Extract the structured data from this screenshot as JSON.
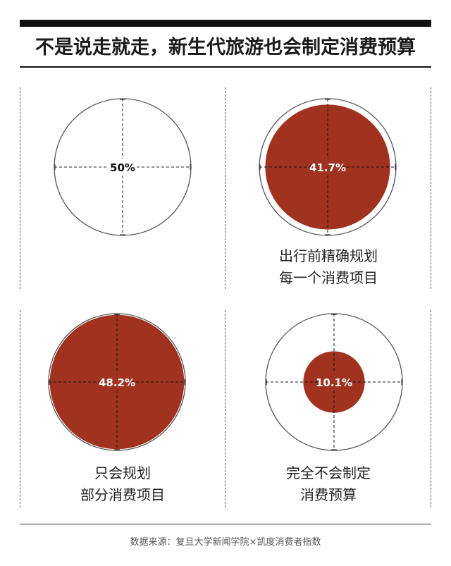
{
  "title": "不是说走就走，新生代旅游也会制定消费预算",
  "source": "数据来源：复旦大学新闻学院×凯度消费者指数",
  "colors": {
    "accent": "#a0321f",
    "outline": "#555555",
    "text": "#1a1a1a"
  },
  "chart_data": {
    "type": "proportional-area",
    "unit": "%",
    "reference_value": 50,
    "items": [
      {
        "label": "50%",
        "value": 50,
        "caption": [
          "",
          ""
        ]
      },
      {
        "label": "41.7%",
        "value": 41.7,
        "caption": [
          "出行前精确规划",
          "每一个消费项目"
        ]
      },
      {
        "label": "48.2%",
        "value": 48.2,
        "caption": [
          "只会规划",
          "部分消费项目"
        ]
      },
      {
        "label": "10.1%",
        "value": 10.1,
        "caption": [
          "完全不会制定",
          "消费预算"
        ]
      }
    ]
  }
}
